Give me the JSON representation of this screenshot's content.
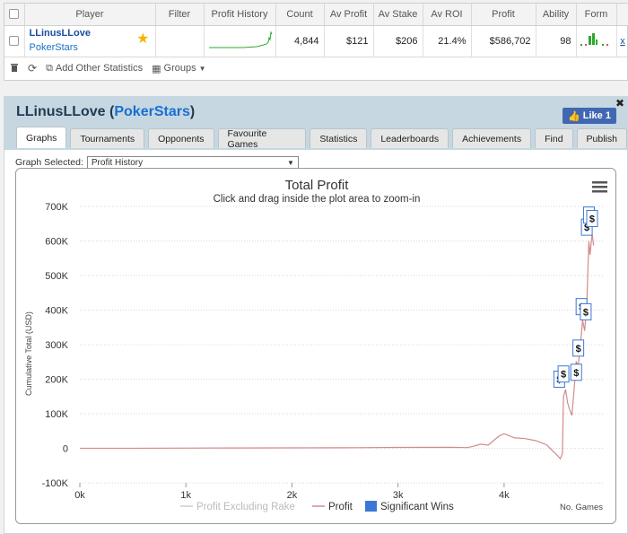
{
  "stats_table": {
    "headers": [
      "Player",
      "Filter",
      "Profit History",
      "Count",
      "Av Profit",
      "Av Stake",
      "Av ROI",
      "Profit",
      "Ability",
      "Form"
    ],
    "row": {
      "player_name": "LLinusLLove",
      "player_site": "PokerStars",
      "filter": "",
      "count": "4,844",
      "av_profit": "$121",
      "av_stake": "$206",
      "av_roi": "21.4%",
      "profit": "$586,702",
      "ability": "98",
      "remove_link": "x"
    }
  },
  "toolbar": {
    "add_stats_label": "Add Other Statistics",
    "groups_label": "Groups"
  },
  "player_panel": {
    "name": "LLinusLLove",
    "site": "PokerStars",
    "like_label": "Like 1",
    "tabs": [
      "Graphs",
      "Tournaments",
      "Opponents",
      "Favourite Games",
      "Statistics",
      "Leaderboards",
      "Achievements",
      "Find",
      "Publish"
    ],
    "active_tab": "Graphs",
    "graph_selected_label": "Graph Selected:",
    "graph_selected_value": "Profit History"
  },
  "chart_data": {
    "type": "line",
    "title": "Total Profit",
    "subtitle": "Click and drag inside the plot area to zoom-in",
    "xlabel": "No. Games",
    "ylabel": "Cumulative Total (USD)",
    "xlim": [
      0,
      4844
    ],
    "ylim": [
      -100000,
      700000
    ],
    "x_ticks": [
      "0k",
      "1k",
      "2k",
      "3k",
      "4k"
    ],
    "y_ticks": [
      "700K",
      "600K",
      "500K",
      "400K",
      "300K",
      "200K",
      "100K",
      "0",
      "-100K"
    ],
    "legend": [
      "Profit Excluding Rake",
      "Profit",
      "Significant Wins"
    ],
    "legend_position": "bottom",
    "colors": {
      "profit": "#d48a8a",
      "profit_excl_rake": "#cccccc",
      "significant_wins": "#3a78d4"
    },
    "series": [
      {
        "name": "Profit",
        "points": [
          [
            0,
            0
          ],
          [
            500,
            0
          ],
          [
            900,
            500
          ],
          [
            1500,
            1000
          ],
          [
            2000,
            1200
          ],
          [
            2600,
            1800
          ],
          [
            3000,
            2500
          ],
          [
            3500,
            3000
          ],
          [
            3650,
            2000
          ],
          [
            3700,
            5000
          ],
          [
            3780,
            12000
          ],
          [
            3850,
            9000
          ],
          [
            3900,
            22000
          ],
          [
            3950,
            35000
          ],
          [
            4000,
            42000
          ],
          [
            4100,
            30000
          ],
          [
            4200,
            28000
          ],
          [
            4300,
            22000
          ],
          [
            4400,
            10000
          ],
          [
            4450,
            -5000
          ],
          [
            4500,
            -20000
          ],
          [
            4530,
            -30000
          ],
          [
            4550,
            -15000
          ],
          [
            4560,
            150000
          ],
          [
            4580,
            170000
          ],
          [
            4600,
            130000
          ],
          [
            4620,
            110000
          ],
          [
            4640,
            95000
          ],
          [
            4660,
            170000
          ],
          [
            4680,
            250000
          ],
          [
            4700,
            240000
          ],
          [
            4720,
            300000
          ],
          [
            4740,
            370000
          ],
          [
            4760,
            340000
          ],
          [
            4780,
            420000
          ],
          [
            4800,
            600000
          ],
          [
            4810,
            560000
          ],
          [
            4820,
            590000
          ],
          [
            4830,
            620000
          ],
          [
            4844,
            586702
          ]
        ]
      }
    ],
    "significant_wins": [
      {
        "x": 4520,
        "y": 200000,
        "label": "$"
      },
      {
        "x": 4560,
        "y": 215000,
        "label": "$"
      },
      {
        "x": 4680,
        "y": 220000,
        "label": "$"
      },
      {
        "x": 4700,
        "y": 290000,
        "label": "$"
      },
      {
        "x": 4730,
        "y": 410000,
        "label": "$"
      },
      {
        "x": 4770,
        "y": 395000,
        "label": "$"
      },
      {
        "x": 4780,
        "y": 640000,
        "label": "$"
      },
      {
        "x": 4800,
        "y": 675000,
        "label": "$"
      },
      {
        "x": 4830,
        "y": 665000,
        "label": "$"
      }
    ]
  }
}
